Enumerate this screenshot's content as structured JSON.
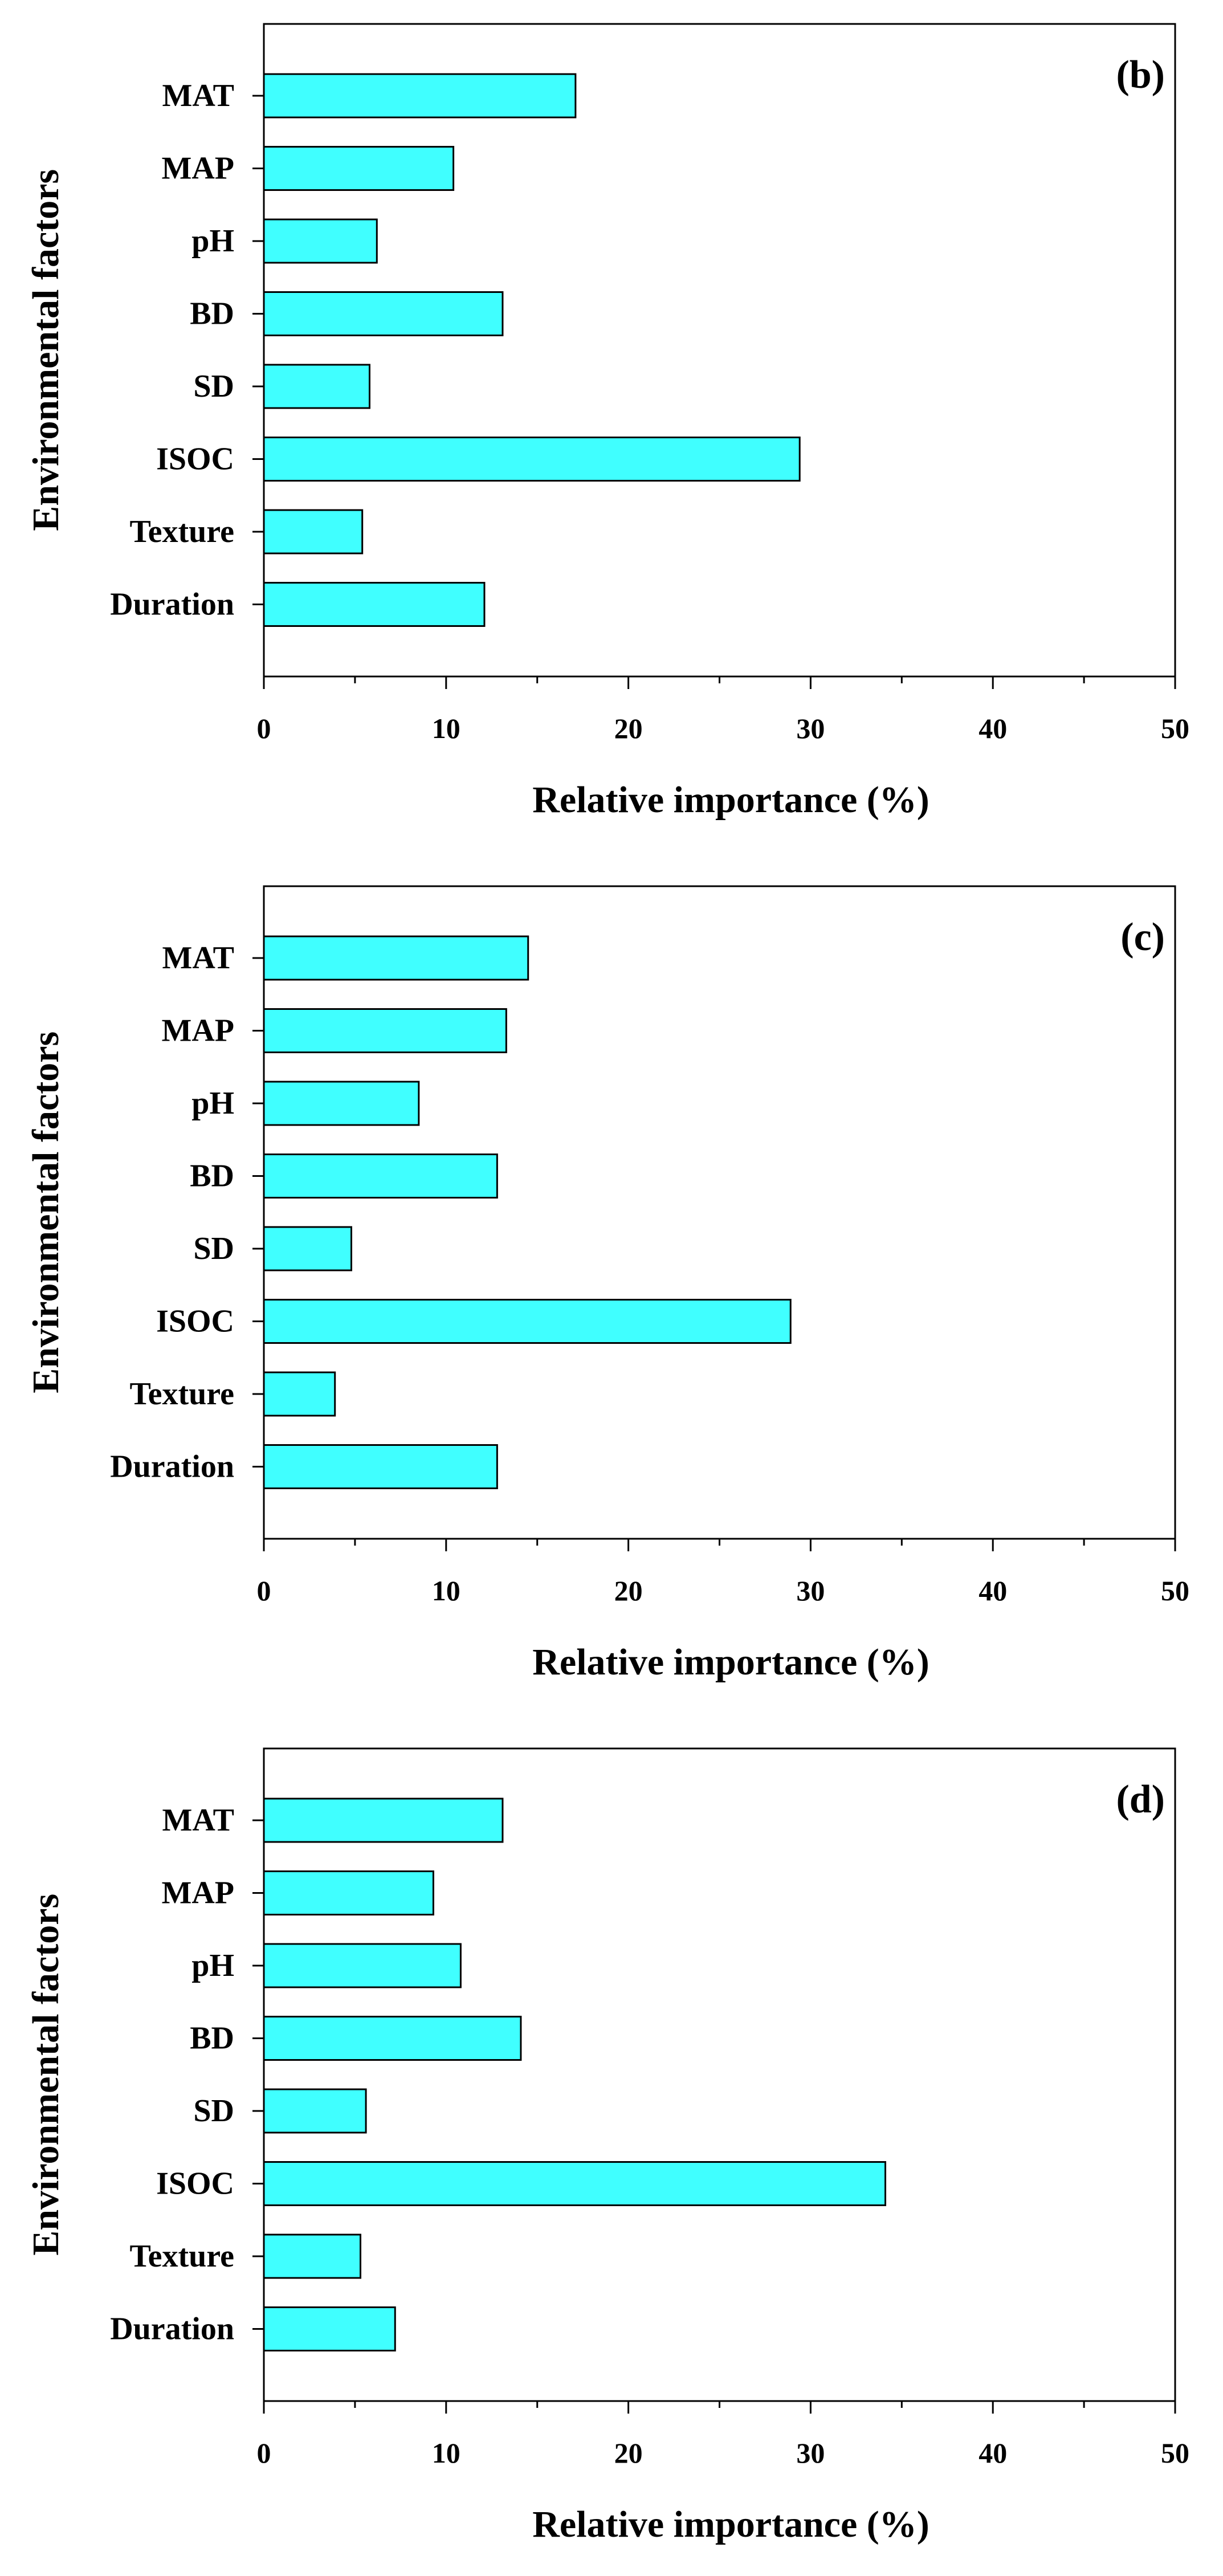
{
  "chart_data": [
    {
      "type": "bar",
      "orientation": "horizontal",
      "panel_label": "(b)",
      "categories": [
        "MAT",
        "MAP",
        "pH",
        "BD",
        "SD",
        "ISOC",
        "Texture",
        "Duration"
      ],
      "values": [
        17.1,
        10.4,
        6.2,
        13.1,
        5.8,
        29.4,
        5.4,
        12.1
      ],
      "xlabel": "Relative importance (%)",
      "ylabel": "Environmental factors",
      "xlim": [
        0,
        50
      ],
      "xticks": [
        "0",
        "10",
        "20",
        "30",
        "40",
        "50"
      ],
      "bar_color": "#40FFFF",
      "grid": false
    },
    {
      "type": "bar",
      "orientation": "horizontal",
      "panel_label": "(c)",
      "categories": [
        "MAT",
        "MAP",
        "pH",
        "BD",
        "SD",
        "ISOC",
        "Texture",
        "Duration"
      ],
      "values": [
        14.5,
        13.3,
        8.5,
        12.8,
        4.8,
        28.9,
        3.9,
        12.8
      ],
      "xlabel": "Relative importance (%)",
      "ylabel": "Environmental factors",
      "xlim": [
        0,
        50
      ],
      "xticks": [
        "0",
        "10",
        "20",
        "30",
        "40",
        "50"
      ],
      "bar_color": "#40FFFF",
      "grid": false
    },
    {
      "type": "bar",
      "orientation": "horizontal",
      "panel_label": "(d)",
      "categories": [
        "MAT",
        "MAP",
        "pH",
        "BD",
        "SD",
        "ISOC",
        "Texture",
        "Duration"
      ],
      "values": [
        13.1,
        9.3,
        10.8,
        14.1,
        5.6,
        34.1,
        5.3,
        7.2
      ],
      "xlabel": "Relative importance (%)",
      "ylabel": "Environmental factors",
      "xlim": [
        0,
        50
      ],
      "xticks": [
        "0",
        "10",
        "20",
        "30",
        "40",
        "50"
      ],
      "bar_color": "#40FFFF",
      "grid": false
    }
  ]
}
